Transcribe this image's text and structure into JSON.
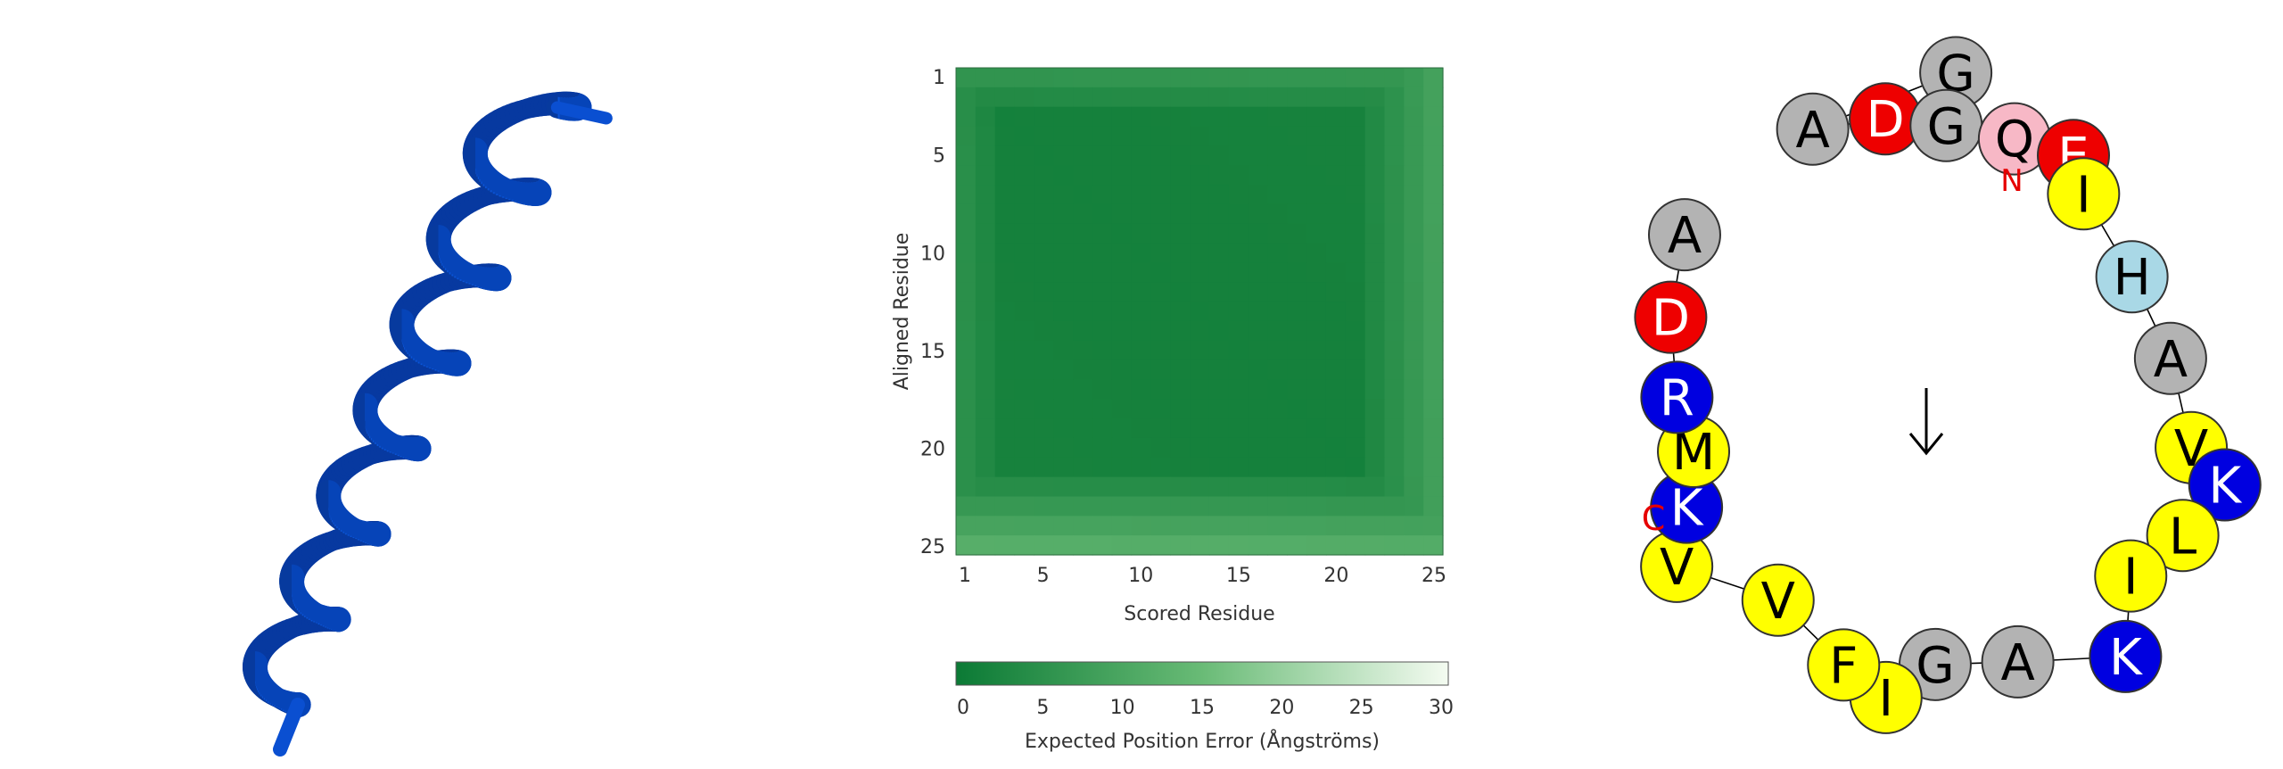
{
  "pae_plot": {
    "ylabel": "Aligned Residue",
    "xlabel": "Scored Residue",
    "ticks": [
      "1",
      "5",
      "10",
      "15",
      "20",
      "25"
    ],
    "colorbar": {
      "label": "Expected Position Error (Ångströms)",
      "ticks": [
        "0",
        "5",
        "10",
        "15",
        "20",
        "25",
        "30"
      ]
    },
    "colors": {
      "low": "#0b7a35",
      "high": "#f4fbf1"
    }
  },
  "chart_data": {
    "type": "heatmap",
    "xlabel": "Scored Residue",
    "ylabel": "Aligned Residue",
    "x_range": [
      1,
      25
    ],
    "y_range": [
      1,
      25
    ],
    "color_range": [
      0,
      30
    ],
    "colorbar_label": "Expected Position Error (Ångströms)",
    "edge_error": {
      "first_rows": 4.5,
      "last_rows": 7.5,
      "interior": 1.5
    }
  },
  "helical_wheel": {
    "n_label": "N",
    "c_label": "C",
    "residues": [
      {
        "letter": "G",
        "fill": "#b3b3b3",
        "text": "#000000"
      },
      {
        "letter": "A",
        "fill": "#b3b3b3",
        "text": "#000000"
      },
      {
        "letter": "D",
        "fill": "#ee0000",
        "text": "#ffffff"
      },
      {
        "letter": "G",
        "fill": "#b3b3b3",
        "text": "#000000"
      },
      {
        "letter": "Q",
        "fill": "#f7b8c6",
        "text": "#000000"
      },
      {
        "letter": "E",
        "fill": "#ee0000",
        "text": "#ffffff"
      },
      {
        "letter": "I",
        "fill": "#ffff00",
        "text": "#000000"
      },
      {
        "letter": "H",
        "fill": "#a9d8e6",
        "text": "#000000"
      },
      {
        "letter": "A",
        "fill": "#b3b3b3",
        "text": "#000000"
      },
      {
        "letter": "V",
        "fill": "#ffff00",
        "text": "#000000"
      },
      {
        "letter": "K",
        "fill": "#0000e0",
        "text": "#ffffff"
      },
      {
        "letter": "L",
        "fill": "#ffff00",
        "text": "#000000"
      },
      {
        "letter": "I",
        "fill": "#ffff00",
        "text": "#000000"
      },
      {
        "letter": "K",
        "fill": "#0000e0",
        "text": "#ffffff"
      },
      {
        "letter": "A",
        "fill": "#b3b3b3",
        "text": "#000000"
      },
      {
        "letter": "G",
        "fill": "#b3b3b3",
        "text": "#000000"
      },
      {
        "letter": "I",
        "fill": "#ffff00",
        "text": "#000000"
      },
      {
        "letter": "F",
        "fill": "#ffff00",
        "text": "#000000"
      },
      {
        "letter": "V",
        "fill": "#ffff00",
        "text": "#000000"
      },
      {
        "letter": "V",
        "fill": "#ffff00",
        "text": "#000000"
      },
      {
        "letter": "K",
        "fill": "#0000e0",
        "text": "#ffffff"
      },
      {
        "letter": "M",
        "fill": "#ffff00",
        "text": "#000000"
      },
      {
        "letter": "R",
        "fill": "#0000e0",
        "text": "#ffffff"
      },
      {
        "letter": "D",
        "fill": "#ee0000",
        "text": "#ffffff"
      },
      {
        "letter": "A",
        "fill": "#b3b3b3",
        "text": "#000000"
      }
    ]
  },
  "ribbon": {
    "color": "#0a4fd1"
  }
}
